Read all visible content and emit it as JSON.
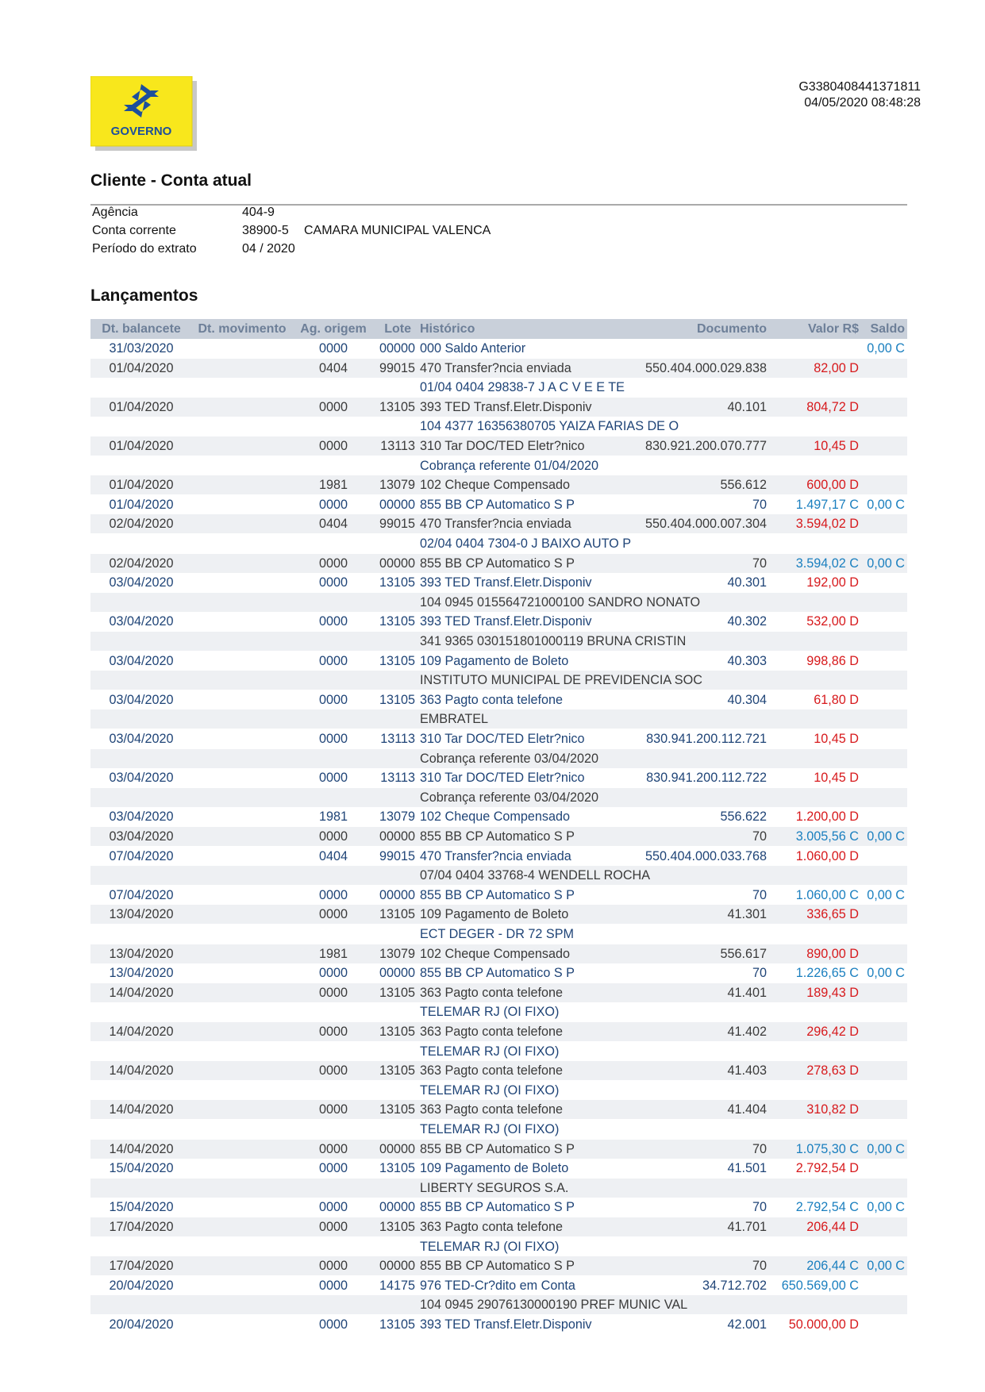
{
  "header": {
    "logo_text": "GOVERNO",
    "code": "G3380408441371811",
    "datetime": "04/05/2020 08:48:28"
  },
  "client": {
    "title": "Cliente - Conta atual",
    "fields": [
      {
        "label": "Agência",
        "value": "404-9"
      },
      {
        "label": "Conta corrente",
        "value": "38900-5",
        "name": "CAMARA MUNICIPAL VALENCA"
      },
      {
        "label": "Período do extrato",
        "value": "04 / 2020"
      }
    ]
  },
  "table": {
    "title": "Lançamentos",
    "columns": [
      "Dt. balancete",
      "Dt. movimento",
      "Ag. origem",
      "Lote",
      "Histórico",
      "Documento",
      "Valor R$",
      "Saldo"
    ],
    "rows": [
      {
        "dt_balancete": "31/03/2020",
        "ag_origem": "0000",
        "lote": "00000",
        "historico": "000 Saldo Anterior",
        "saldo": "0,00 C"
      },
      {
        "dt_balancete": "01/04/2020",
        "ag_origem": "0404",
        "lote": "99015",
        "historico": "470 Transfer?ncia enviada",
        "documento": "550.404.000.029.838",
        "valor": "82,00 D"
      },
      {
        "historico": "01/04 0404 29838-7 J A C V E E TE"
      },
      {
        "dt_balancete": "01/04/2020",
        "ag_origem": "0000",
        "lote": "13105",
        "historico": "393 TED Transf.Eletr.Disponiv",
        "documento": "40.101",
        "valor": "804,72 D"
      },
      {
        "historico": "104 4377 16356380705 YAIZA FARIAS DE O"
      },
      {
        "dt_balancete": "01/04/2020",
        "ag_origem": "0000",
        "lote": "13113",
        "historico": "310 Tar DOC/TED Eletr?nico",
        "documento": "830.921.200.070.777",
        "valor": "10,45 D"
      },
      {
        "historico": "Cobrança referente 01/04/2020"
      },
      {
        "dt_balancete": "01/04/2020",
        "ag_origem": "1981",
        "lote": "13079",
        "historico": "102 Cheque Compensado",
        "documento": "556.612",
        "valor": "600,00 D"
      },
      {
        "dt_balancete": "01/04/2020",
        "ag_origem": "0000",
        "lote": "00000",
        "historico": "855 BB CP Automatico S P",
        "documento": "70",
        "valor": "1.497,17 C",
        "saldo": "0,00 C"
      },
      {
        "dt_balancete": "02/04/2020",
        "ag_origem": "0404",
        "lote": "99015",
        "historico": "470 Transfer?ncia enviada",
        "documento": "550.404.000.007.304",
        "valor": "3.594,02 D"
      },
      {
        "historico": "02/04 0404 7304-0 J BAIXO AUTO P"
      },
      {
        "dt_balancete": "02/04/2020",
        "ag_origem": "0000",
        "lote": "00000",
        "historico": "855 BB CP Automatico S P",
        "documento": "70",
        "valor": "3.594,02 C",
        "saldo": "0,00 C"
      },
      {
        "dt_balancete": "03/04/2020",
        "ag_origem": "0000",
        "lote": "13105",
        "historico": "393 TED Transf.Eletr.Disponiv",
        "documento": "40.301",
        "valor": "192,00 D"
      },
      {
        "historico": "104 0945 015564721000100 SANDRO NONATO"
      },
      {
        "dt_balancete": "03/04/2020",
        "ag_origem": "0000",
        "lote": "13105",
        "historico": "393 TED Transf.Eletr.Disponiv",
        "documento": "40.302",
        "valor": "532,00 D"
      },
      {
        "historico": "341 9365 030151801000119 BRUNA CRISTIN"
      },
      {
        "dt_balancete": "03/04/2020",
        "ag_origem": "0000",
        "lote": "13105",
        "historico": "109 Pagamento de Boleto",
        "documento": "40.303",
        "valor": "998,86 D"
      },
      {
        "historico": "INSTITUTO MUNICIPAL DE PREVIDENCIA SOC"
      },
      {
        "dt_balancete": "03/04/2020",
        "ag_origem": "0000",
        "lote": "13105",
        "historico": "363 Pagto conta telefone",
        "documento": "40.304",
        "valor": "61,80 D"
      },
      {
        "historico": "EMBRATEL"
      },
      {
        "dt_balancete": "03/04/2020",
        "ag_origem": "0000",
        "lote": "13113",
        "historico": "310 Tar DOC/TED Eletr?nico",
        "documento": "830.941.200.112.721",
        "valor": "10,45 D"
      },
      {
        "historico": "Cobrança referente 03/04/2020"
      },
      {
        "dt_balancete": "03/04/2020",
        "ag_origem": "0000",
        "lote": "13113",
        "historico": "310 Tar DOC/TED Eletr?nico",
        "documento": "830.941.200.112.722",
        "valor": "10,45 D"
      },
      {
        "historico": "Cobrança referente 03/04/2020"
      },
      {
        "dt_balancete": "03/04/2020",
        "ag_origem": "1981",
        "lote": "13079",
        "historico": "102 Cheque Compensado",
        "documento": "556.622",
        "valor": "1.200,00 D"
      },
      {
        "dt_balancete": "03/04/2020",
        "ag_origem": "0000",
        "lote": "00000",
        "historico": "855 BB CP Automatico S P",
        "documento": "70",
        "valor": "3.005,56 C",
        "saldo": "0,00 C"
      },
      {
        "dt_balancete": "07/04/2020",
        "ag_origem": "0404",
        "lote": "99015",
        "historico": "470 Transfer?ncia enviada",
        "documento": "550.404.000.033.768",
        "valor": "1.060,00 D"
      },
      {
        "historico": "07/04 0404 33768-4 WENDELL ROCHA"
      },
      {
        "dt_balancete": "07/04/2020",
        "ag_origem": "0000",
        "lote": "00000",
        "historico": "855 BB CP Automatico S P",
        "documento": "70",
        "valor": "1.060,00 C",
        "saldo": "0,00 C"
      },
      {
        "dt_balancete": "13/04/2020",
        "ag_origem": "0000",
        "lote": "13105",
        "historico": "109 Pagamento de Boleto",
        "documento": "41.301",
        "valor": "336,65 D"
      },
      {
        "historico": "ECT DEGER - DR 72 SPM"
      },
      {
        "dt_balancete": "13/04/2020",
        "ag_origem": "1981",
        "lote": "13079",
        "historico": "102 Cheque Compensado",
        "documento": "556.617",
        "valor": "890,00 D"
      },
      {
        "dt_balancete": "13/04/2020",
        "ag_origem": "0000",
        "lote": "00000",
        "historico": "855 BB CP Automatico S P",
        "documento": "70",
        "valor": "1.226,65 C",
        "saldo": "0,00 C"
      },
      {
        "dt_balancete": "14/04/2020",
        "ag_origem": "0000",
        "lote": "13105",
        "historico": "363 Pagto conta telefone",
        "documento": "41.401",
        "valor": "189,43 D"
      },
      {
        "historico": "TELEMAR RJ (OI FIXO)"
      },
      {
        "dt_balancete": "14/04/2020",
        "ag_origem": "0000",
        "lote": "13105",
        "historico": "363 Pagto conta telefone",
        "documento": "41.402",
        "valor": "296,42 D"
      },
      {
        "historico": "TELEMAR RJ (OI FIXO)"
      },
      {
        "dt_balancete": "14/04/2020",
        "ag_origem": "0000",
        "lote": "13105",
        "historico": "363 Pagto conta telefone",
        "documento": "41.403",
        "valor": "278,63 D"
      },
      {
        "historico": "TELEMAR RJ (OI FIXO)"
      },
      {
        "dt_balancete": "14/04/2020",
        "ag_origem": "0000",
        "lote": "13105",
        "historico": "363 Pagto conta telefone",
        "documento": "41.404",
        "valor": "310,82 D"
      },
      {
        "historico": "TELEMAR RJ (OI FIXO)"
      },
      {
        "dt_balancete": "14/04/2020",
        "ag_origem": "0000",
        "lote": "00000",
        "historico": "855 BB CP Automatico S P",
        "documento": "70",
        "valor": "1.075,30 C",
        "saldo": "0,00 C"
      },
      {
        "dt_balancete": "15/04/2020",
        "ag_origem": "0000",
        "lote": "13105",
        "historico": "109 Pagamento de Boleto",
        "documento": "41.501",
        "valor": "2.792,54 D"
      },
      {
        "historico": "LIBERTY SEGUROS S.A."
      },
      {
        "dt_balancete": "15/04/2020",
        "ag_origem": "0000",
        "lote": "00000",
        "historico": "855 BB CP Automatico S P",
        "documento": "70",
        "valor": "2.792,54 C",
        "saldo": "0,00 C"
      },
      {
        "dt_balancete": "17/04/2020",
        "ag_origem": "0000",
        "lote": "13105",
        "historico": "363 Pagto conta telefone",
        "documento": "41.701",
        "valor": "206,44 D"
      },
      {
        "historico": "TELEMAR RJ (OI FIXO)"
      },
      {
        "dt_balancete": "17/04/2020",
        "ag_origem": "0000",
        "lote": "00000",
        "historico": "855 BB CP Automatico S P",
        "documento": "70",
        "valor": "206,44 C",
        "saldo": "0,00 C"
      },
      {
        "dt_balancete": "20/04/2020",
        "ag_origem": "0000",
        "lote": "14175",
        "historico": "976 TED-Cr?dito em Conta",
        "documento": "34.712.702",
        "valor": "650.569,00 C"
      },
      {
        "historico": "104 0945 29076130000190 PREF MUNIC VAL"
      },
      {
        "dt_balancete": "20/04/2020",
        "ag_origem": "0000",
        "lote": "13105",
        "historico": "393 TED Transf.Eletr.Disponiv",
        "documento": "42.001",
        "valor": "50.000,00 D"
      }
    ]
  }
}
